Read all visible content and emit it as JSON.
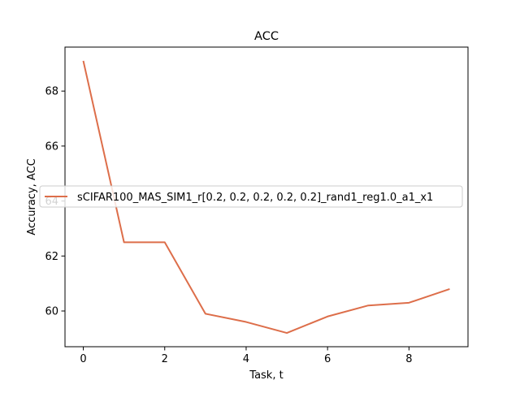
{
  "chart_data": {
    "type": "line",
    "title": "ACC",
    "xlabel": "Task, t",
    "ylabel": "Accuracy, ACC",
    "xlim": [
      -0.45,
      9.45
    ],
    "ylim": [
      58.7,
      69.6
    ],
    "xticks": [
      0,
      2,
      4,
      6,
      8
    ],
    "yticks": [
      60,
      62,
      64,
      66,
      68
    ],
    "grid": false,
    "legend_position": "center-left",
    "series": [
      {
        "name": "sCIFAR100_MAS_SIM1_r[0.2, 0.2, 0.2, 0.2, 0.2]_rand1_reg1.0_a1_x1",
        "color": "#dd6e4a",
        "x": [
          0,
          1,
          2,
          3,
          4,
          5,
          6,
          7,
          8,
          9
        ],
        "y": [
          69.1,
          62.5,
          62.5,
          59.9,
          59.6,
          59.2,
          59.8,
          60.2,
          60.3,
          60.8
        ]
      }
    ]
  }
}
